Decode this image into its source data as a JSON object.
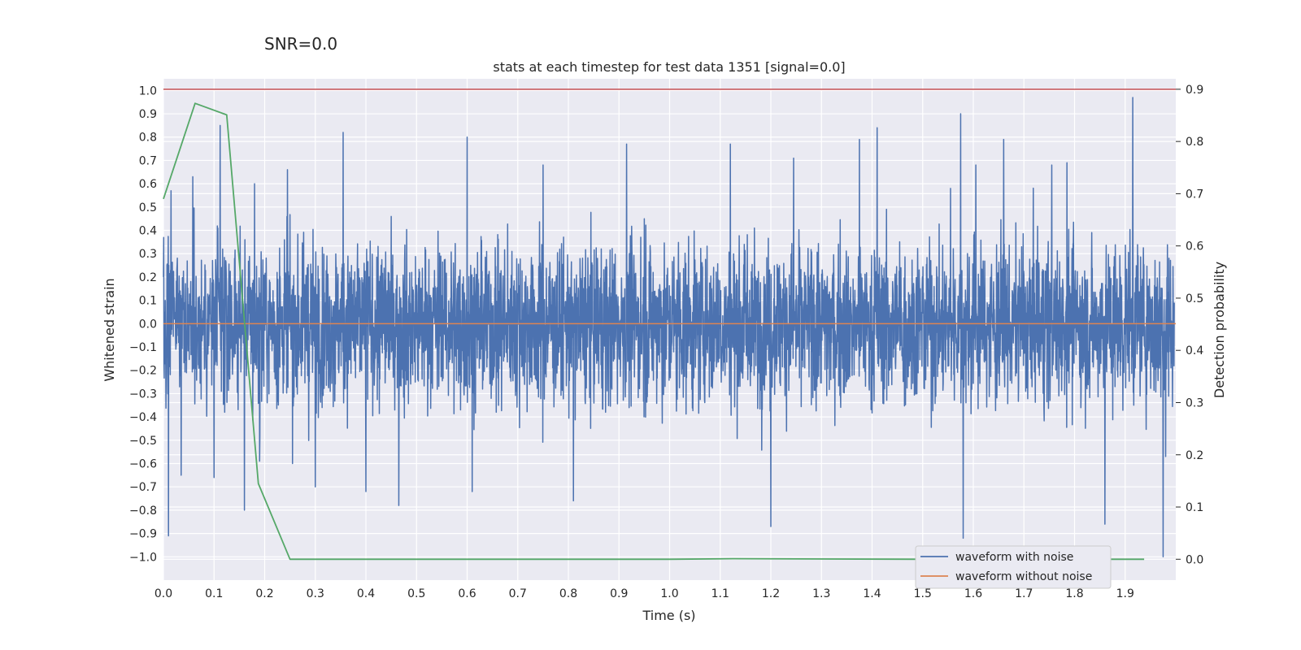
{
  "chart_data": {
    "type": "line",
    "suptitle": "SNR=0.0",
    "title": "stats at each timestep for test data 1351 [signal=0.0]",
    "xlabel": "Time (s)",
    "ylabel": "Whitened strain",
    "y2label": "Detection probability",
    "xlim": [
      0.0,
      2.0
    ],
    "ylim": [
      -1.1,
      1.05
    ],
    "y2lim": [
      -0.04,
      0.92
    ],
    "grid": true,
    "legend_position": "lower-right",
    "x_ticks": [
      0.0,
      0.1,
      0.2,
      0.3,
      0.4,
      0.5,
      0.6,
      0.7,
      0.8,
      0.9,
      1.0,
      1.1,
      1.2,
      1.3,
      1.4,
      1.5,
      1.6,
      1.7,
      1.8,
      1.9
    ],
    "x_tick_labels": [
      "0.0",
      "0.1",
      "0.2",
      "0.3",
      "0.4",
      "0.5",
      "0.6",
      "0.7",
      "0.8",
      "0.9",
      "1.0",
      "1.1",
      "1.2",
      "1.3",
      "1.4",
      "1.5",
      "1.6",
      "1.7",
      "1.8",
      "1.9"
    ],
    "y_ticks": [
      1.0,
      0.9,
      0.8,
      0.7,
      0.6,
      0.5,
      0.4,
      0.3,
      0.2,
      0.1,
      0.0,
      -0.1,
      -0.2,
      -0.3,
      -0.4,
      -0.5,
      -0.6,
      -0.7,
      -0.8,
      -0.9,
      -1.0
    ],
    "y_tick_labels": [
      "1.0",
      "0.9",
      "0.8",
      "0.7",
      "0.6",
      "0.5",
      "0.4",
      "0.3",
      "0.2",
      "0.1",
      "0.0",
      "−0.1",
      "−0.2",
      "−0.3",
      "−0.4",
      "−0.5",
      "−0.6",
      "−0.7",
      "−0.8",
      "−0.9",
      "−1.0"
    ],
    "y2_ticks": [
      0.9,
      0.8,
      0.7,
      0.6,
      0.5,
      0.4,
      0.3,
      0.2,
      0.1,
      0.0
    ],
    "y2_tick_labels": [
      "0.9",
      "0.8",
      "0.7",
      "0.6",
      "0.5",
      "0.4",
      "0.3",
      "0.2",
      "0.1",
      "0.0"
    ],
    "series": [
      {
        "name": "waveform with noise",
        "axis": "left",
        "color": "#4c72b0",
        "style": "dense noise spanning roughly -0.5 to 0.5 with spikes",
        "sample_spacing_s": 0.0005,
        "num_samples": 3995,
        "spikes": [
          {
            "x": 0.01,
            "y": -0.91
          },
          {
            "x": 0.015,
            "y": 0.57
          },
          {
            "x": 0.035,
            "y": -0.65
          },
          {
            "x": 0.058,
            "y": 0.63
          },
          {
            "x": 0.1,
            "y": -0.66
          },
          {
            "x": 0.112,
            "y": 0.85
          },
          {
            "x": 0.16,
            "y": -0.8
          },
          {
            "x": 0.18,
            "y": 0.6
          },
          {
            "x": 0.19,
            "y": -0.59
          },
          {
            "x": 0.245,
            "y": 0.66
          },
          {
            "x": 0.255,
            "y": -0.6
          },
          {
            "x": 0.3,
            "y": -0.7
          },
          {
            "x": 0.355,
            "y": 0.82
          },
          {
            "x": 0.4,
            "y": -0.72
          },
          {
            "x": 0.465,
            "y": -0.78
          },
          {
            "x": 0.6,
            "y": 0.8
          },
          {
            "x": 0.61,
            "y": -0.72
          },
          {
            "x": 0.75,
            "y": 0.68
          },
          {
            "x": 0.81,
            "y": -0.76
          },
          {
            "x": 0.915,
            "y": 0.77
          },
          {
            "x": 0.95,
            "y": 0.45
          },
          {
            "x": 1.12,
            "y": 0.77
          },
          {
            "x": 1.2,
            "y": -0.87
          },
          {
            "x": 1.245,
            "y": 0.71
          },
          {
            "x": 1.375,
            "y": 0.79
          },
          {
            "x": 1.41,
            "y": 0.84
          },
          {
            "x": 1.555,
            "y": 0.58
          },
          {
            "x": 1.575,
            "y": 0.9
          },
          {
            "x": 1.58,
            "y": -0.92
          },
          {
            "x": 1.605,
            "y": 0.68
          },
          {
            "x": 1.66,
            "y": 0.79
          },
          {
            "x": 1.755,
            "y": 0.68
          },
          {
            "x": 1.785,
            "y": 0.69
          },
          {
            "x": 1.86,
            "y": -0.86
          },
          {
            "x": 1.915,
            "y": 0.97
          },
          {
            "x": 1.975,
            "y": -1.0
          },
          {
            "x": 1.98,
            "y": -0.57
          }
        ]
      },
      {
        "name": "waveform without noise",
        "axis": "left",
        "color": "#dd8452",
        "x": [
          0.0,
          2.0
        ],
        "y": [
          0.0,
          0.0
        ]
      },
      {
        "name": "detection probability",
        "axis": "right",
        "color": "#55a868",
        "x": [
          0.0,
          0.0625,
          0.125,
          0.1875,
          0.25,
          0.3125,
          0.375,
          0.5,
          1.0,
          1.125,
          1.5,
          1.9375
        ],
        "y": [
          0.69,
          0.873,
          0.851,
          0.145,
          0.0,
          0.0,
          0.0,
          0.0,
          0.0,
          0.001,
          0.0,
          0.0
        ]
      },
      {
        "name": "threshold",
        "axis": "right",
        "color": "#c44e52",
        "x": [
          0.0,
          2.0
        ],
        "y": [
          0.9,
          0.9
        ]
      }
    ],
    "legend": [
      "waveform with noise",
      "waveform without noise"
    ]
  },
  "colors": {
    "plot_background": "#eaeaf2",
    "grid": "#ffffff",
    "text": "#262626"
  }
}
